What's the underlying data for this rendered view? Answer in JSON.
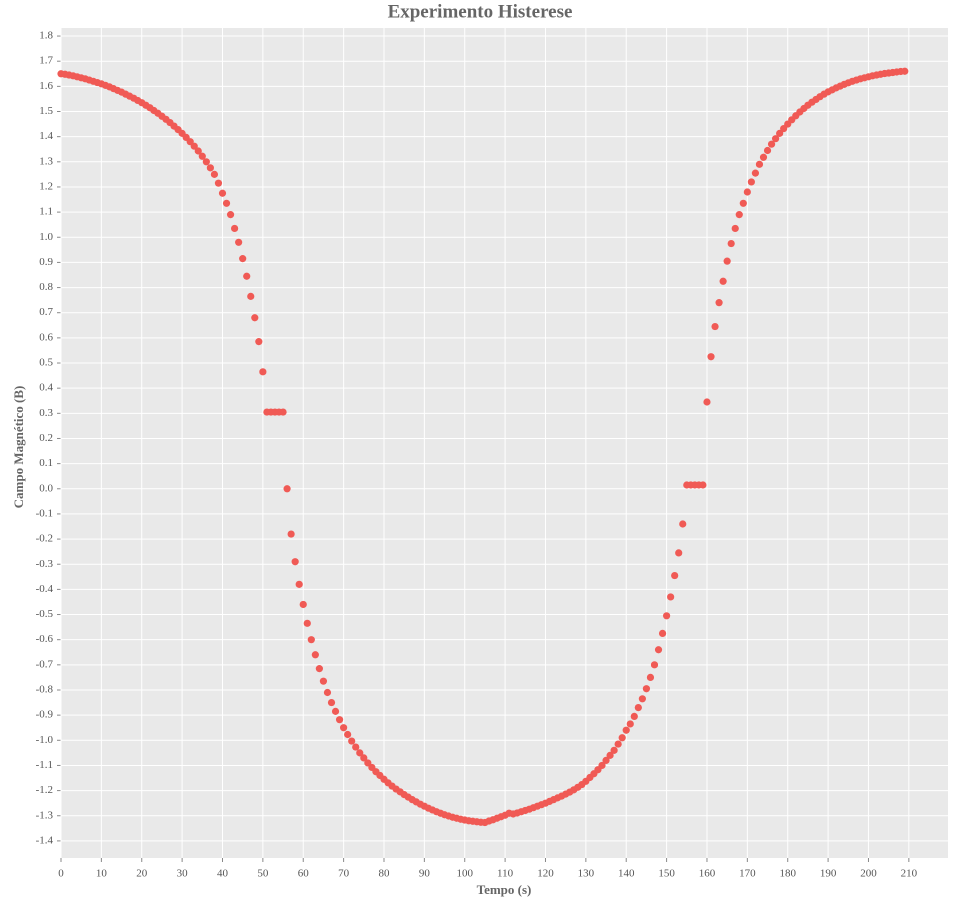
{
  "chart_data": {
    "type": "scatter",
    "title": "Experimento Histerese",
    "x_label": "Tempo (s)",
    "y_label": "Campo Magnético (B)",
    "color": "#f05a55",
    "grid": true,
    "xlim": [
      0,
      219.7
    ],
    "ylim": [
      -1.468,
      1.832
    ],
    "xticks": [
      0,
      10,
      20,
      30,
      40,
      50,
      60,
      70,
      80,
      90,
      100,
      110,
      120,
      130,
      140,
      150,
      160,
      170,
      180,
      190,
      200,
      210
    ],
    "yticks": [
      -1.4,
      -1.3,
      -1.2,
      -1.1,
      {
        "value": -1.0,
        "label": "-1.0"
      },
      -0.9,
      -0.8,
      -0.7,
      -0.6,
      -0.5,
      -0.4,
      -0.3,
      -0.2,
      -0.1,
      {
        "value": 0,
        "label": "0.0"
      },
      0.1,
      0.2,
      0.3,
      0.4,
      0.5,
      0.6,
      0.7,
      0.8,
      0.9,
      {
        "value": 1.0,
        "label": "1.0"
      },
      1.1,
      1.2,
      1.3,
      1.4,
      1.5,
      1.6,
      1.7,
      1.8
    ],
    "x": [
      0,
      1,
      2,
      3,
      4,
      5,
      6,
      7,
      8,
      9,
      10,
      11,
      12,
      13,
      14,
      15,
      16,
      17,
      18,
      19,
      20,
      21,
      22,
      23,
      24,
      25,
      26,
      27,
      28,
      29,
      30,
      31,
      32,
      33,
      34,
      35,
      36,
      37,
      38,
      39,
      40,
      41,
      42,
      43,
      44,
      45,
      46,
      47,
      48,
      49,
      50,
      51,
      52,
      53,
      54,
      55,
      56,
      57,
      58,
      59,
      60,
      61,
      62,
      63,
      64,
      65,
      66,
      67,
      68,
      69,
      70,
      71,
      72,
      73,
      74,
      75,
      76,
      77,
      78,
      79,
      80,
      81,
      82,
      83,
      84,
      85,
      86,
      87,
      88,
      89,
      90,
      91,
      92,
      93,
      94,
      95,
      96,
      97,
      98,
      99,
      100,
      101,
      102,
      103,
      104,
      105,
      106,
      107,
      108,
      109,
      110,
      111,
      112,
      113,
      114,
      115,
      116,
      117,
      118,
      119,
      120,
      121,
      122,
      123,
      124,
      125,
      126,
      127,
      128,
      129,
      130,
      131,
      132,
      133,
      134,
      135,
      136,
      137,
      138,
      139,
      140,
      141,
      142,
      143,
      144,
      145,
      146,
      147,
      148,
      149,
      150,
      151,
      152,
      153,
      154,
      155,
      156,
      157,
      158,
      159,
      160,
      161,
      162,
      163,
      164,
      165,
      166,
      167,
      168,
      169,
      170,
      171,
      172,
      173,
      174,
      175,
      176,
      177,
      178,
      179,
      180,
      181,
      182,
      183,
      184,
      185,
      186,
      187,
      188,
      189,
      190,
      191,
      192,
      193,
      194,
      195,
      196,
      197,
      198,
      199,
      200,
      201,
      202,
      203,
      204,
      205,
      206,
      207,
      208,
      209
    ],
    "y": [
      1.65,
      1.648,
      1.645,
      1.642,
      1.638,
      1.634,
      1.63,
      1.625,
      1.62,
      1.615,
      1.61,
      1.604,
      1.598,
      1.591,
      1.584,
      1.577,
      1.569,
      1.561,
      1.553,
      1.544,
      1.535,
      1.525,
      1.515,
      1.504,
      1.493,
      1.481,
      1.469,
      1.456,
      1.442,
      1.428,
      1.413,
      1.397,
      1.38,
      1.362,
      1.343,
      1.322,
      1.3,
      1.276,
      1.25,
      1.215,
      1.175,
      1.135,
      1.09,
      1.035,
      0.98,
      0.915,
      0.845,
      0.765,
      0.68,
      0.585,
      0.465,
      0.305,
      0.305,
      0.305,
      0.305,
      0.305,
      0.0,
      -0.18,
      -0.29,
      -0.38,
      -0.46,
      -0.535,
      -0.6,
      -0.66,
      -0.715,
      -0.765,
      -0.81,
      -0.85,
      -0.885,
      -0.918,
      -0.95,
      -0.977,
      -1.003,
      -1.027,
      -1.05,
      -1.07,
      -1.09,
      -1.108,
      -1.125,
      -1.14,
      -1.155,
      -1.169,
      -1.182,
      -1.194,
      -1.205,
      -1.216,
      -1.226,
      -1.236,
      -1.245,
      -1.254,
      -1.262,
      -1.27,
      -1.277,
      -1.284,
      -1.29,
      -1.296,
      -1.301,
      -1.306,
      -1.31,
      -1.314,
      -1.317,
      -1.32,
      -1.322,
      -1.324,
      -1.326,
      -1.327,
      -1.321,
      -1.316,
      -1.31,
      -1.304,
      -1.298,
      -1.29,
      -1.293,
      -1.289,
      -1.284,
      -1.279,
      -1.274,
      -1.268,
      -1.262,
      -1.256,
      -1.25,
      -1.243,
      -1.236,
      -1.229,
      -1.222,
      -1.214,
      -1.206,
      -1.197,
      -1.187,
      -1.176,
      -1.163,
      -1.148,
      -1.133,
      -1.117,
      -1.1,
      -1.08,
      -1.06,
      -1.04,
      -1.015,
      -0.99,
      -0.96,
      -0.935,
      -0.905,
      -0.87,
      -0.835,
      -0.795,
      -0.75,
      -0.7,
      -0.64,
      -0.575,
      -0.505,
      -0.43,
      -0.345,
      -0.255,
      -0.14,
      0.015,
      0.015,
      0.015,
      0.015,
      0.015,
      0.345,
      0.525,
      0.645,
      0.74,
      0.825,
      0.905,
      0.975,
      1.035,
      1.09,
      1.135,
      1.18,
      1.22,
      1.255,
      1.29,
      1.318,
      1.345,
      1.37,
      1.392,
      1.413,
      1.432,
      1.45,
      1.467,
      1.483,
      1.498,
      1.512,
      1.525,
      1.537,
      1.548,
      1.559,
      1.569,
      1.578,
      1.586,
      1.594,
      1.601,
      1.608,
      1.614,
      1.62,
      1.625,
      1.63,
      1.634,
      1.638,
      1.642,
      1.645,
      1.648,
      1.651,
      1.653,
      1.655,
      1.657,
      1.659,
      1.66
    ]
  }
}
